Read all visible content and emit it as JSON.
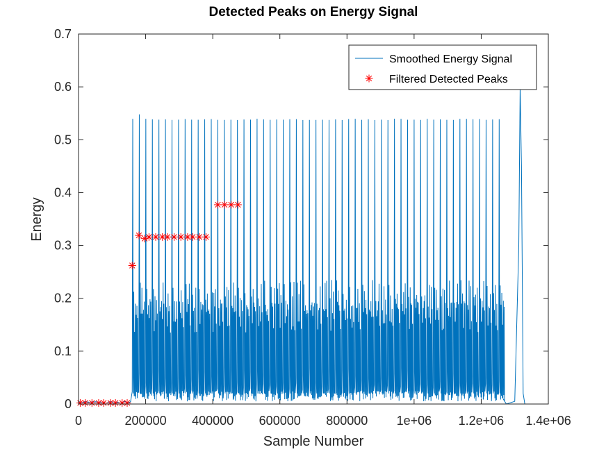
{
  "chart_data": {
    "type": "line",
    "title": "Detected Peaks on Energy Signal",
    "xlabel": "Sample Number",
    "ylabel": "Energy",
    "xlim": [
      0,
      1400000
    ],
    "ylim": [
      0,
      0.7
    ],
    "x_ticks": [
      0,
      200000,
      400000,
      600000,
      800000,
      1000000,
      1200000,
      1400000
    ],
    "x_tick_labels": [
      "0",
      "200000",
      "400000",
      "600000",
      "800000",
      "1e+06",
      "1.2e+06",
      "1.4e+06"
    ],
    "y_ticks": [
      0,
      0.1,
      0.2,
      0.3,
      0.4,
      0.5,
      0.6,
      0.7
    ],
    "y_tick_labels": [
      "0",
      "0.1",
      "0.2",
      "0.3",
      "0.4",
      "0.5",
      "0.6",
      "0.7"
    ],
    "grid": false,
    "legend_position": "top-right",
    "series": [
      {
        "name": "Smoothed Energy Signal",
        "style": "line",
        "color": "#0072BD",
        "signal": {
          "pulse_start": 160000,
          "pulse_end": 1265000,
          "pulse_period": 19500,
          "major_peak": 0.54,
          "secondary_peak": 0.235,
          "baseline": 0.005,
          "final_burst": [
            [
              1265000,
              0.01
            ],
            [
              1275000,
              0.0
            ],
            [
              1300000,
              0.005
            ],
            [
              1312000,
              0.3
            ],
            [
              1316000,
              0.6
            ],
            [
              1320000,
              0.45
            ],
            [
              1325000,
              0.02
            ],
            [
              1330000,
              0.0
            ]
          ]
        }
      },
      {
        "name": "Filtered Detected Peaks",
        "style": "marker",
        "marker": "*",
        "color": "#FF0000",
        "x": [
          5000,
          20000,
          40000,
          60000,
          75000,
          95000,
          110000,
          130000,
          145000,
          160000,
          180000,
          197000,
          210000,
          230000,
          250000,
          265000,
          285000,
          305000,
          325000,
          340000,
          360000,
          380000,
          415000,
          435000,
          455000,
          475000
        ],
        "y": [
          0.002,
          0.002,
          0.002,
          0.002,
          0.002,
          0.002,
          0.002,
          0.002,
          0.002,
          0.262,
          0.319,
          0.313,
          0.316,
          0.316,
          0.316,
          0.316,
          0.316,
          0.316,
          0.316,
          0.316,
          0.316,
          0.316,
          0.377,
          0.377,
          0.377,
          0.377
        ]
      }
    ]
  }
}
